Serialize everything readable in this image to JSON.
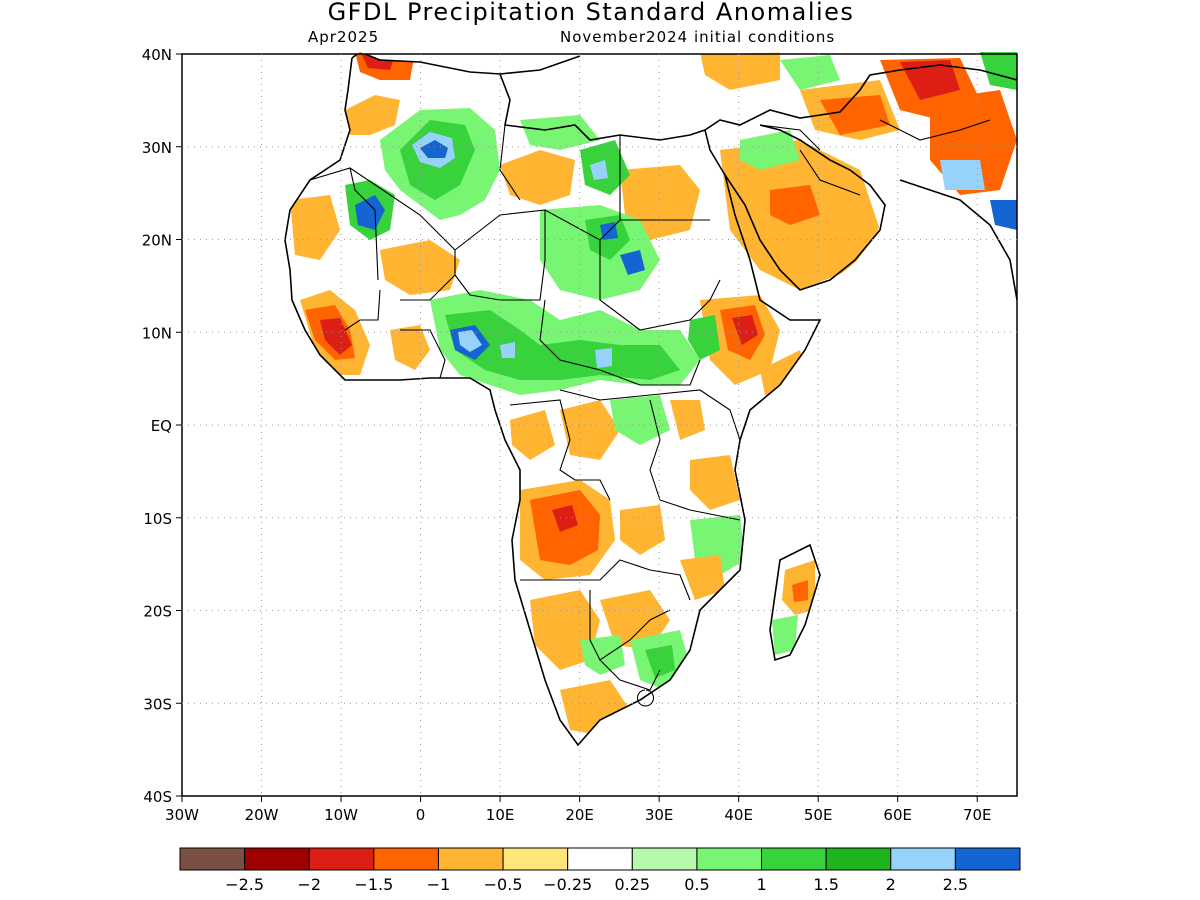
{
  "title": "GFDL Precipitation Standard Anomalies",
  "subtitle_left": "Apr2025",
  "subtitle_right": "November2024 initial conditions",
  "map": {
    "lon_range": [
      -30,
      75
    ],
    "lat_range": [
      -40,
      40
    ],
    "lat_ticks": [
      "40N",
      "30N",
      "20N",
      "10N",
      "EQ",
      "10S",
      "20S",
      "30S",
      "40S"
    ],
    "lat_values": [
      40,
      30,
      20,
      10,
      0,
      -10,
      -20,
      -30,
      -40
    ],
    "lon_ticks": [
      "30W",
      "20W",
      "10W",
      "0",
      "10E",
      "20E",
      "30E",
      "40E",
      "50E",
      "60E",
      "70E"
    ],
    "lon_values": [
      -30,
      -20,
      -10,
      0,
      10,
      20,
      30,
      40,
      50,
      60,
      70
    ],
    "grid": true
  },
  "colorbar": {
    "colors": [
      "#7a5044",
      "#a00000",
      "#dc1e14",
      "#ff6400",
      "#ffb432",
      "#ffe678",
      "#ffffff",
      "#b4faaa",
      "#78f573",
      "#37d23c",
      "#1eb41e",
      "#96d2fa",
      "#1464d2"
    ],
    "labels": [
      "−2.5",
      "−2",
      "−1.5",
      "−1",
      "−0.5",
      "−0.25",
      "0.25",
      "0.5",
      "1",
      "1.5",
      "2",
      "2.5"
    ]
  }
}
